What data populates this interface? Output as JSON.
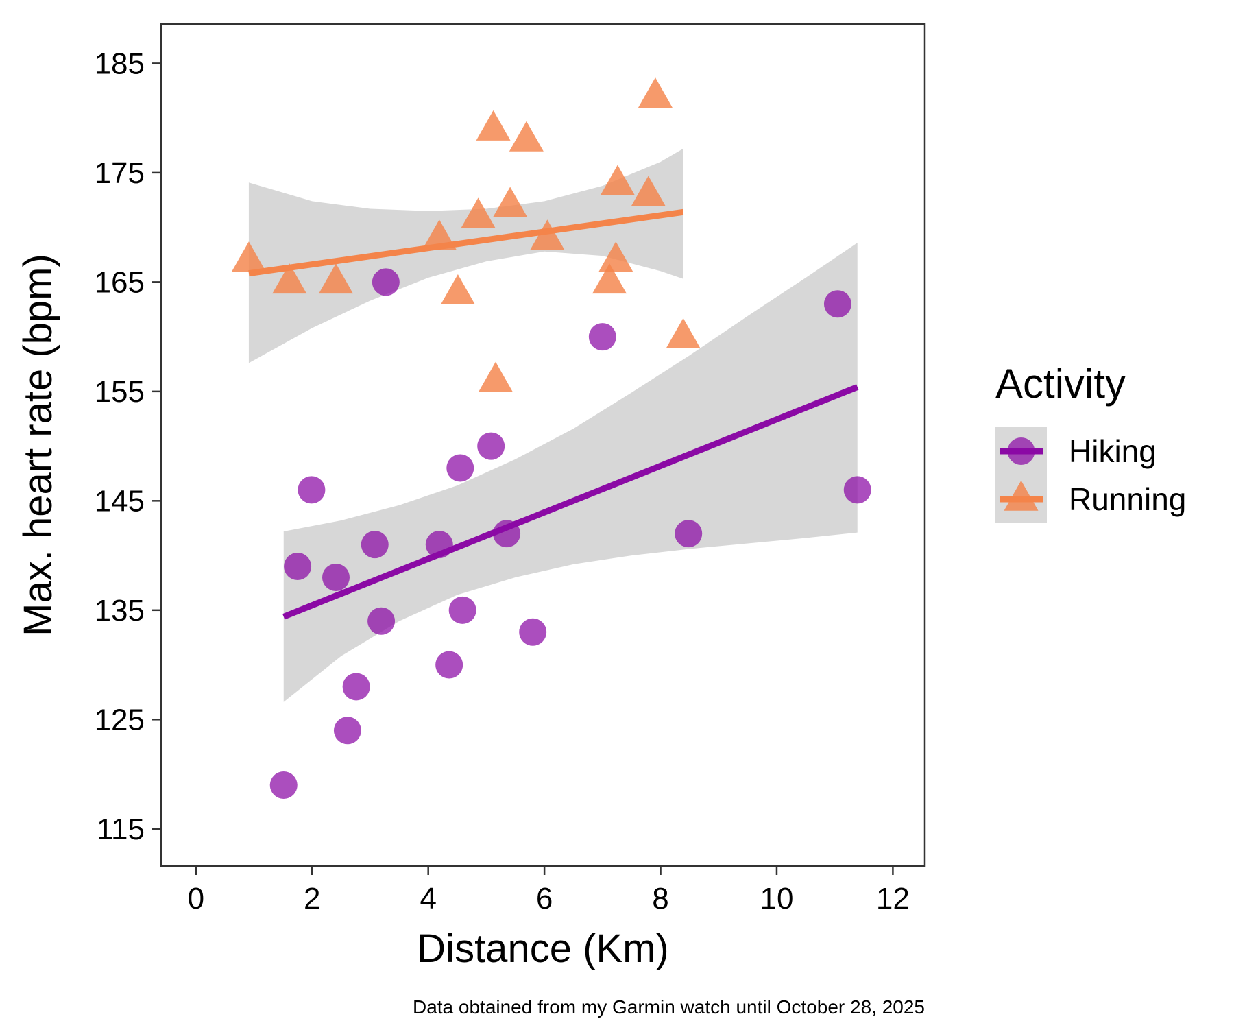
{
  "chart_data": {
    "type": "scatter",
    "xlabel": "Distance (Km)",
    "ylabel": "Max. heart rate (bpm)",
    "caption": "Data obtained from my Garmin watch until October 28, 2025",
    "xlim": [
      -0.6,
      12.55
    ],
    "ylim": [
      111.6,
      188.6
    ],
    "xticks": [
      0,
      2,
      4,
      6,
      8,
      10,
      12
    ],
    "yticks": [
      115,
      125,
      135,
      145,
      155,
      165,
      175,
      185
    ],
    "grid": false,
    "legend": {
      "title": "Activity",
      "position": "right"
    },
    "series": [
      {
        "name": "Hiking",
        "color": "#8B0AA5",
        "marker": "circle",
        "points": [
          [
            1.51,
            119
          ],
          [
            1.75,
            139
          ],
          [
            1.99,
            146
          ],
          [
            2.41,
            138
          ],
          [
            2.61,
            124
          ],
          [
            2.76,
            128
          ],
          [
            3.08,
            141
          ],
          [
            3.19,
            134
          ],
          [
            3.27,
            165
          ],
          [
            4.19,
            141
          ],
          [
            4.36,
            130
          ],
          [
            4.55,
            148
          ],
          [
            4.59,
            135
          ],
          [
            5.08,
            150
          ],
          [
            5.35,
            142
          ],
          [
            5.8,
            133
          ],
          [
            7.0,
            160
          ],
          [
            8.48,
            142
          ],
          [
            11.05,
            163
          ],
          [
            11.39,
            146
          ]
        ],
        "trend": {
          "x": [
            1.51,
            11.39
          ],
          "y": [
            134.4,
            155.4
          ]
        },
        "ci": {
          "x": [
            1.51,
            2.5,
            3.5,
            4.5,
            5.5,
            6.5,
            7.5,
            8.5,
            9.5,
            10.5,
            11.39
          ],
          "upper": [
            142.2,
            143.2,
            144.6,
            146.4,
            148.8,
            151.6,
            154.9,
            158.3,
            161.9,
            165.4,
            168.6
          ],
          "lower": [
            126.6,
            130.8,
            134.0,
            136.4,
            138.0,
            139.2,
            140.0,
            140.6,
            141.1,
            141.6,
            142.1
          ]
        }
      },
      {
        "name": "Running",
        "color": "#F4844A",
        "marker": "triangle",
        "points": [
          [
            0.91,
            167
          ],
          [
            1.61,
            165
          ],
          [
            2.41,
            165
          ],
          [
            4.19,
            169
          ],
          [
            4.51,
            164
          ],
          [
            4.86,
            171
          ],
          [
            5.12,
            179
          ],
          [
            5.16,
            156
          ],
          [
            5.41,
            172
          ],
          [
            5.69,
            178
          ],
          [
            6.05,
            169
          ],
          [
            7.12,
            165
          ],
          [
            7.23,
            167
          ],
          [
            7.26,
            174
          ],
          [
            7.79,
            173
          ],
          [
            7.91,
            182
          ],
          [
            8.39,
            160
          ]
        ],
        "trend": {
          "x": [
            0.91,
            8.39
          ],
          "y": [
            165.8,
            171.4
          ]
        },
        "ci": {
          "x": [
            0.91,
            2.0,
            3.0,
            4.0,
            5.0,
            6.0,
            7.0,
            8.0,
            8.39
          ],
          "upper": [
            174.1,
            172.4,
            171.7,
            171.5,
            171.7,
            172.4,
            173.8,
            176.0,
            177.2
          ],
          "lower": [
            157.6,
            160.8,
            163.3,
            165.4,
            166.9,
            167.8,
            167.4,
            166.0,
            165.3
          ]
        }
      }
    ]
  }
}
